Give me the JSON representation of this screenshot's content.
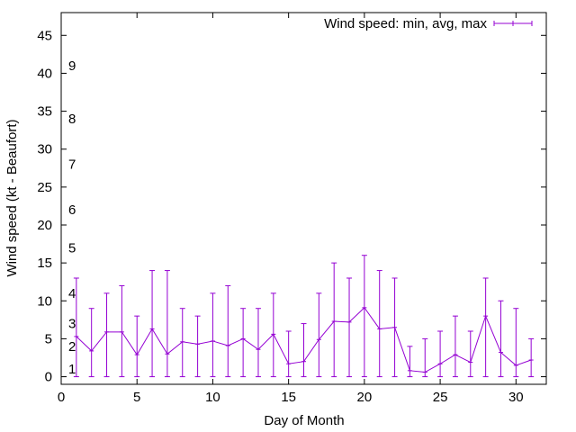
{
  "chart_data": {
    "type": "line",
    "title": "",
    "xlabel": "Day of Month",
    "ylabel": "Wind speed (kt - Beaufort)",
    "xlim": [
      0,
      32
    ],
    "ylim": [
      -1,
      48
    ],
    "xticks": [
      0,
      5,
      10,
      15,
      20,
      25,
      30
    ],
    "yticks": [
      0,
      5,
      10,
      15,
      20,
      25,
      30,
      35,
      40,
      45
    ],
    "grid": false,
    "legend_position": "top-right",
    "color": "#9400d3",
    "series": [
      {
        "name": "Wind speed: min, avg, max",
        "x": [
          1,
          2,
          3,
          4,
          5,
          6,
          7,
          8,
          9,
          10,
          11,
          12,
          13,
          14,
          15,
          16,
          17,
          18,
          19,
          20,
          21,
          22,
          23,
          24,
          25,
          26,
          27,
          28,
          29,
          30,
          31
        ],
        "avg": [
          5.3,
          3.4,
          5.9,
          5.9,
          2.9,
          6.3,
          3.0,
          4.6,
          4.3,
          4.7,
          4.1,
          5.0,
          3.6,
          5.6,
          1.7,
          2.0,
          4.9,
          7.3,
          7.2,
          9.1,
          6.3,
          6.5,
          0.8,
          0.6,
          1.7,
          2.9,
          1.9,
          8.0,
          3.2,
          1.5,
          2.2
        ],
        "min": [
          0,
          0,
          0,
          0,
          0,
          0,
          0,
          0,
          0,
          0,
          0,
          0,
          0,
          0,
          0,
          0,
          0,
          0,
          0,
          0,
          0,
          0,
          0,
          0,
          0,
          0,
          0,
          0,
          0,
          0,
          0
        ],
        "max": [
          13,
          9,
          11,
          12,
          8,
          14,
          14,
          9,
          8,
          11,
          12,
          9,
          9,
          11,
          6,
          7,
          11,
          15,
          13,
          16,
          14,
          13,
          4,
          5,
          6,
          8,
          6,
          13,
          10,
          9,
          5
        ]
      }
    ],
    "beaufort_labels": [
      {
        "label": "1",
        "y": 1
      },
      {
        "label": "2",
        "y": 4
      },
      {
        "label": "3",
        "y": 7
      },
      {
        "label": "4",
        "y": 11
      },
      {
        "label": "5",
        "y": 17
      },
      {
        "label": "6",
        "y": 22
      },
      {
        "label": "7",
        "y": 28
      },
      {
        "label": "8",
        "y": 34
      },
      {
        "label": "9",
        "y": 41
      }
    ]
  }
}
